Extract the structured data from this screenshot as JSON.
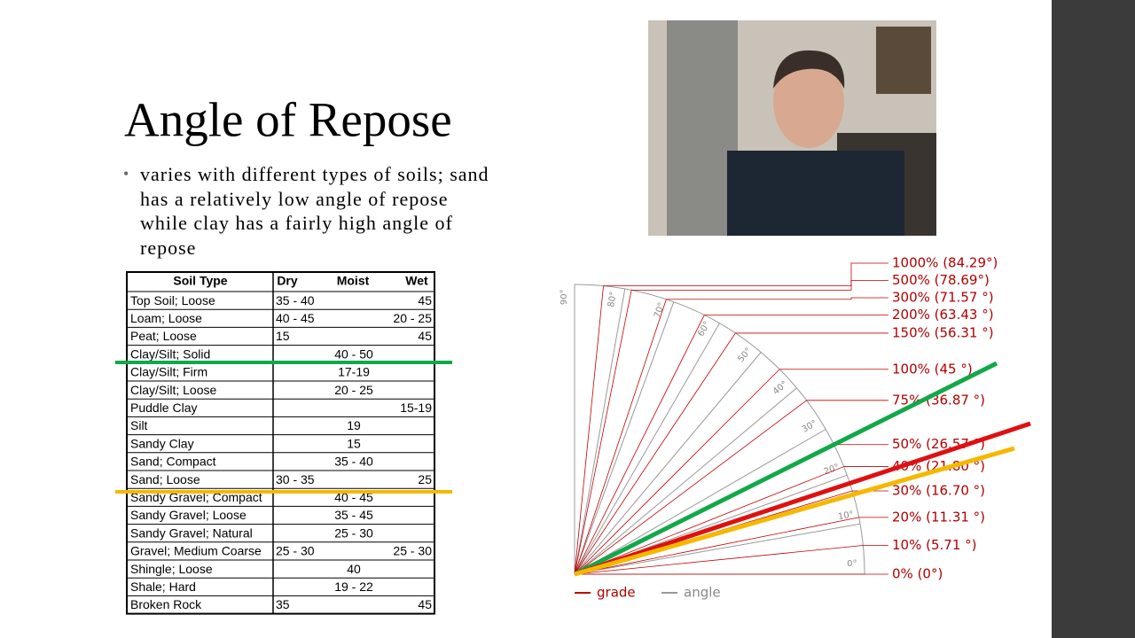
{
  "title": "Angle of Repose",
  "bullet": "varies with different types of soils; sand has a relatively low angle of repose while clay has a fairly high angle of repose",
  "table": {
    "header": {
      "soil": "Soil Type",
      "dry": "Dry",
      "moist": "Moist",
      "wet": "Wet"
    },
    "rows": [
      {
        "soil": "Top Soil; Loose",
        "dry": "35 - 40",
        "wet": "45"
      },
      {
        "soil": "Loam; Loose",
        "dry": "40 - 45",
        "wet": "20 - 25"
      },
      {
        "soil": "Peat; Loose",
        "dry": "15",
        "wet": "45"
      },
      {
        "soil": "Clay/Silt; Solid",
        "moist": "40 - 50"
      },
      {
        "soil": "Clay/Silt; Firm",
        "moist": "17-19"
      },
      {
        "soil": "Clay/Silt; Loose",
        "moist": "20 - 25"
      },
      {
        "soil": "Puddle Clay",
        "wet": "15-19"
      },
      {
        "soil": "Silt",
        "moist": "19"
      },
      {
        "soil": "Sandy Clay",
        "moist": "15"
      },
      {
        "soil": "Sand; Compact",
        "moist": "35 - 40"
      },
      {
        "soil": "Sand; Loose",
        "dry": "30 - 35",
        "wet": "25"
      },
      {
        "soil": "Sandy Gravel; Compact",
        "moist": "40 - 45"
      },
      {
        "soil": "Sandy Gravel; Loose",
        "moist": "35 - 45"
      },
      {
        "soil": "Sandy Gravel; Natural",
        "moist": "25 - 30"
      },
      {
        "soil": "Gravel; Medium Coarse",
        "dry": "25 - 30",
        "wet": "25 - 30"
      },
      {
        "soil": "Shingle; Loose",
        "moist": "40"
      },
      {
        "soil": "Shale; Hard",
        "moist": "19 - 22"
      },
      {
        "soil": "Broken Rock",
        "dry": "35",
        "wet": "45"
      }
    ]
  },
  "diagram": {
    "grades": [
      {
        "label": "0% (0°)",
        "angle": 0
      },
      {
        "label": "10% (5.71 °)",
        "angle": 5.71
      },
      {
        "label": "20% (11.31 °)",
        "angle": 11.31
      },
      {
        "label": "30% (16.70 °)",
        "angle": 16.7
      },
      {
        "label": "40% (21.80 °)",
        "angle": 21.8
      },
      {
        "label": "50% (26.57 °)",
        "angle": 26.57
      },
      {
        "label": "75% (36.87 °)",
        "angle": 36.87
      },
      {
        "label": "100% (45 °)",
        "angle": 45
      },
      {
        "label": "150% (56.31 °)",
        "angle": 56.31
      },
      {
        "label": "200% (63.43 °)",
        "angle": 63.43
      },
      {
        "label": "300% (71.57 °)",
        "angle": 71.57
      },
      {
        "label": "500% (78.69°)",
        "angle": 78.69
      },
      {
        "label": "1000% (84.29°)",
        "angle": 84.29
      }
    ],
    "angles": [
      {
        "value": 0,
        "label": "0°"
      },
      {
        "value": 10,
        "label": "10°"
      },
      {
        "value": 20,
        "label": "20°"
      },
      {
        "value": 30,
        "label": "30°"
      },
      {
        "value": 40,
        "label": "40°"
      },
      {
        "value": 50,
        "label": "50°"
      },
      {
        "value": 60,
        "label": "60°"
      },
      {
        "value": 70,
        "label": "70°"
      },
      {
        "value": 80,
        "label": "80°"
      },
      {
        "value": 90,
        "label": "90°"
      }
    ],
    "legend": {
      "grade": "grade",
      "angle": "angle"
    }
  }
}
